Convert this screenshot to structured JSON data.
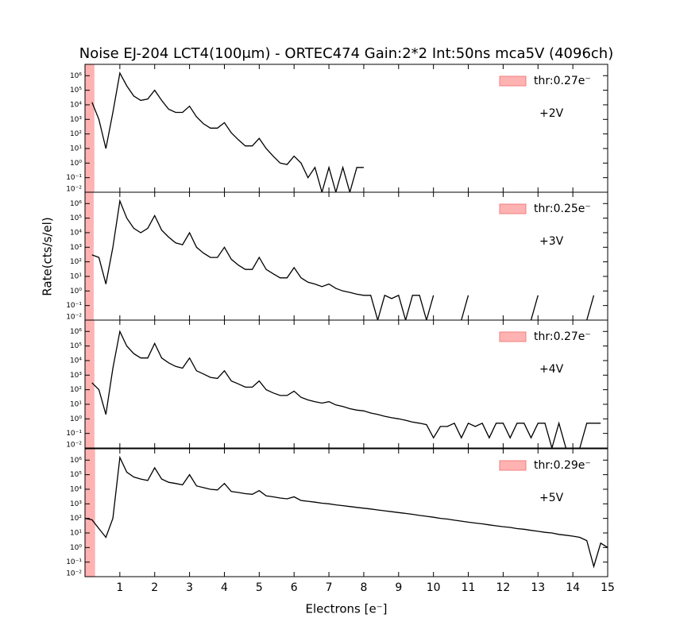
{
  "chart_data": {
    "type": "line",
    "log_y": true,
    "title": "Noise EJ-204 LCT4(100μm) - ORTEC474 Gain:2*2 Int:50ns mca5V (4096ch)",
    "xlabel": "Electrons [e⁻]",
    "ylabel": "Rate(cts/s/el)",
    "xlim": [
      0,
      15
    ],
    "xticks": [
      1,
      2,
      3,
      4,
      5,
      6,
      7,
      8,
      9,
      10,
      11,
      12,
      13,
      14,
      15
    ],
    "ylim": [
      0.01,
      6000000
    ],
    "yticks": [
      {
        "value": 0.01,
        "label": "10⁻²"
      },
      {
        "value": 0.1,
        "label": "10⁻¹"
      },
      {
        "value": 1,
        "label": "10⁰"
      },
      {
        "value": 10,
        "label": "10¹"
      },
      {
        "value": 100,
        "label": "10²"
      },
      {
        "value": 1000,
        "label": "10³"
      },
      {
        "value": 10000,
        "label": "10⁴"
      },
      {
        "value": 100000,
        "label": "10⁵"
      },
      {
        "value": 1000000,
        "label": "10⁶"
      }
    ],
    "line_color": "#000000",
    "threshold_color": "#ffb2b2",
    "legend": "upper right",
    "x": [
      0,
      0.2,
      0.4,
      0.6,
      0.8,
      1,
      1.2,
      1.4,
      1.6,
      1.8,
      2,
      2.2,
      2.4,
      2.6,
      2.8,
      3,
      3.2,
      3.4,
      3.6,
      3.8,
      4,
      4.2,
      4.4,
      4.6,
      4.8,
      5,
      5.2,
      5.4,
      5.6,
      5.8,
      6,
      6.2,
      6.4,
      6.6,
      6.8,
      7,
      7.2,
      7.4,
      7.6,
      7.8,
      8,
      8.2,
      8.4,
      8.6,
      8.8,
      9,
      9.2,
      9.4,
      9.6,
      9.8,
      10,
      10.2,
      10.4,
      10.6,
      10.8,
      11,
      11.2,
      11.4,
      11.6,
      11.8,
      12,
      12.2,
      12.4,
      12.6,
      12.8,
      13,
      13.2,
      13.4,
      13.6,
      13.8,
      14,
      14.2,
      14.4,
      14.6,
      14.8,
      15
    ],
    "panels": [
      {
        "annotation": "+2V",
        "threshold": 0.27,
        "threshold_label": "thr:0.27e⁻",
        "values": [
          null,
          15000,
          1000,
          10,
          3000,
          1500000,
          200000,
          40000,
          20000,
          25000,
          100000,
          20000,
          5000,
          3000,
          3000,
          8000,
          1500,
          500,
          250,
          250,
          600,
          120,
          40,
          15,
          15,
          50,
          10,
          3,
          1,
          0.8,
          3,
          1,
          0.1,
          0.5,
          0.01,
          0.5,
          0.01,
          0.5,
          0.01,
          0.5,
          0.5,
          null,
          null,
          null,
          null,
          null,
          null,
          null,
          null,
          null,
          null,
          null,
          null,
          null,
          null,
          null,
          null,
          null,
          null,
          null,
          null,
          null,
          null,
          null,
          null,
          null,
          null,
          null,
          null,
          null,
          null,
          null,
          null,
          null,
          null,
          null
        ]
      },
      {
        "annotation": "+3V",
        "threshold": 0.25,
        "threshold_label": "thr:0.25e⁻",
        "values": [
          null,
          300,
          200,
          3,
          1000,
          1500000,
          100000,
          20000,
          10000,
          20000,
          150000,
          15000,
          5000,
          2000,
          1500,
          10000,
          1000,
          400,
          200,
          200,
          1000,
          150,
          60,
          30,
          30,
          200,
          30,
          15,
          8,
          8,
          40,
          8,
          4,
          3,
          2,
          3,
          1.5,
          1,
          0.8,
          0.6,
          0.5,
          0.5,
          0.01,
          0.5,
          0.3,
          0.5,
          0.01,
          0.5,
          0.5,
          0.01,
          0.5,
          null,
          null,
          null,
          0.01,
          0.5,
          null,
          null,
          null,
          null,
          null,
          null,
          null,
          null,
          0.01,
          0.5,
          null,
          null,
          null,
          null,
          null,
          null,
          0.01,
          0.5,
          null,
          null
        ]
      },
      {
        "annotation": "+4V",
        "threshold": 0.27,
        "threshold_label": "thr:0.27e⁻",
        "values": [
          null,
          300,
          100,
          2,
          3000,
          1000000,
          100000,
          30000,
          15000,
          15000,
          150000,
          15000,
          7000,
          4000,
          3000,
          15000,
          2000,
          1200,
          700,
          600,
          2000,
          400,
          250,
          150,
          150,
          400,
          100,
          60,
          40,
          40,
          80,
          30,
          20,
          15,
          12,
          15,
          9,
          7,
          5,
          4,
          3.5,
          2.5,
          2,
          1.5,
          1.2,
          1,
          0.8,
          0.6,
          0.5,
          0.4,
          0.05,
          0.3,
          0.3,
          0.5,
          0.05,
          0.5,
          0.3,
          0.5,
          0.05,
          0.5,
          0.5,
          0.05,
          0.5,
          0.5,
          0.05,
          0.5,
          0.5,
          0.01,
          0.5,
          0.01,
          null,
          0.01,
          0.5,
          0.5,
          0.5,
          null
        ]
      },
      {
        "annotation": "+5V",
        "threshold": 0.29,
        "threshold_label": "thr:0.29e⁻",
        "values": [
          100,
          80,
          20,
          5,
          100,
          1500000,
          150000,
          70000,
          50000,
          40000,
          300000,
          50000,
          30000,
          25000,
          20000,
          100000,
          17000,
          13000,
          10000,
          9000,
          25000,
          7000,
          6000,
          5000,
          4500,
          8000,
          3500,
          3000,
          2500,
          2200,
          3000,
          1700,
          1500,
          1300,
          1100,
          1000,
          850,
          750,
          650,
          570,
          500,
          440,
          380,
          330,
          290,
          250,
          220,
          190,
          160,
          140,
          120,
          100,
          90,
          75,
          65,
          55,
          48,
          42,
          36,
          31,
          27,
          24,
          20,
          18,
          15,
          13,
          11,
          10,
          8,
          7,
          6,
          5,
          3,
          0.05,
          2,
          1
        ]
      }
    ]
  }
}
